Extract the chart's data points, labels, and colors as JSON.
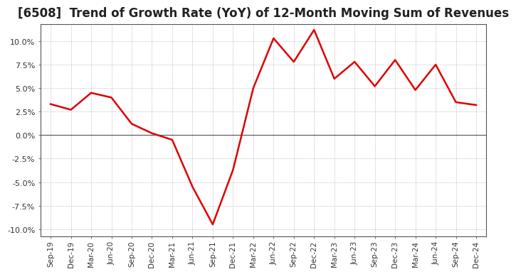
{
  "title": "[6508]  Trend of Growth Rate (YoY) of 12-Month Moving Sum of Revenues",
  "title_fontsize": 12,
  "line_color": "#dd0000",
  "background_color": "#ffffff",
  "plot_bg_color": "#ffffff",
  "grid_color": "#aaaaaa",
  "ylim": [
    -0.108,
    0.118
  ],
  "yticks": [
    -0.1,
    -0.075,
    -0.05,
    -0.025,
    0.0,
    0.025,
    0.05,
    0.075,
    0.1
  ],
  "x_labels": [
    "Sep-19",
    "Dec-19",
    "Mar-20",
    "Jun-20",
    "Sep-20",
    "Dec-20",
    "Mar-21",
    "Jun-21",
    "Sep-21",
    "Dec-21",
    "Mar-22",
    "Jun-22",
    "Sep-22",
    "Dec-22",
    "Mar-23",
    "Jun-23",
    "Sep-23",
    "Dec-23",
    "Mar-24",
    "Jun-24",
    "Sep-24",
    "Dec-24"
  ],
  "values": [
    0.033,
    0.027,
    0.045,
    0.04,
    0.012,
    0.002,
    -0.005,
    -0.055,
    -0.095,
    -0.037,
    0.05,
    0.103,
    0.078,
    0.112,
    0.06,
    0.078,
    0.052,
    0.08,
    0.048,
    0.075,
    0.035,
    0.032
  ]
}
